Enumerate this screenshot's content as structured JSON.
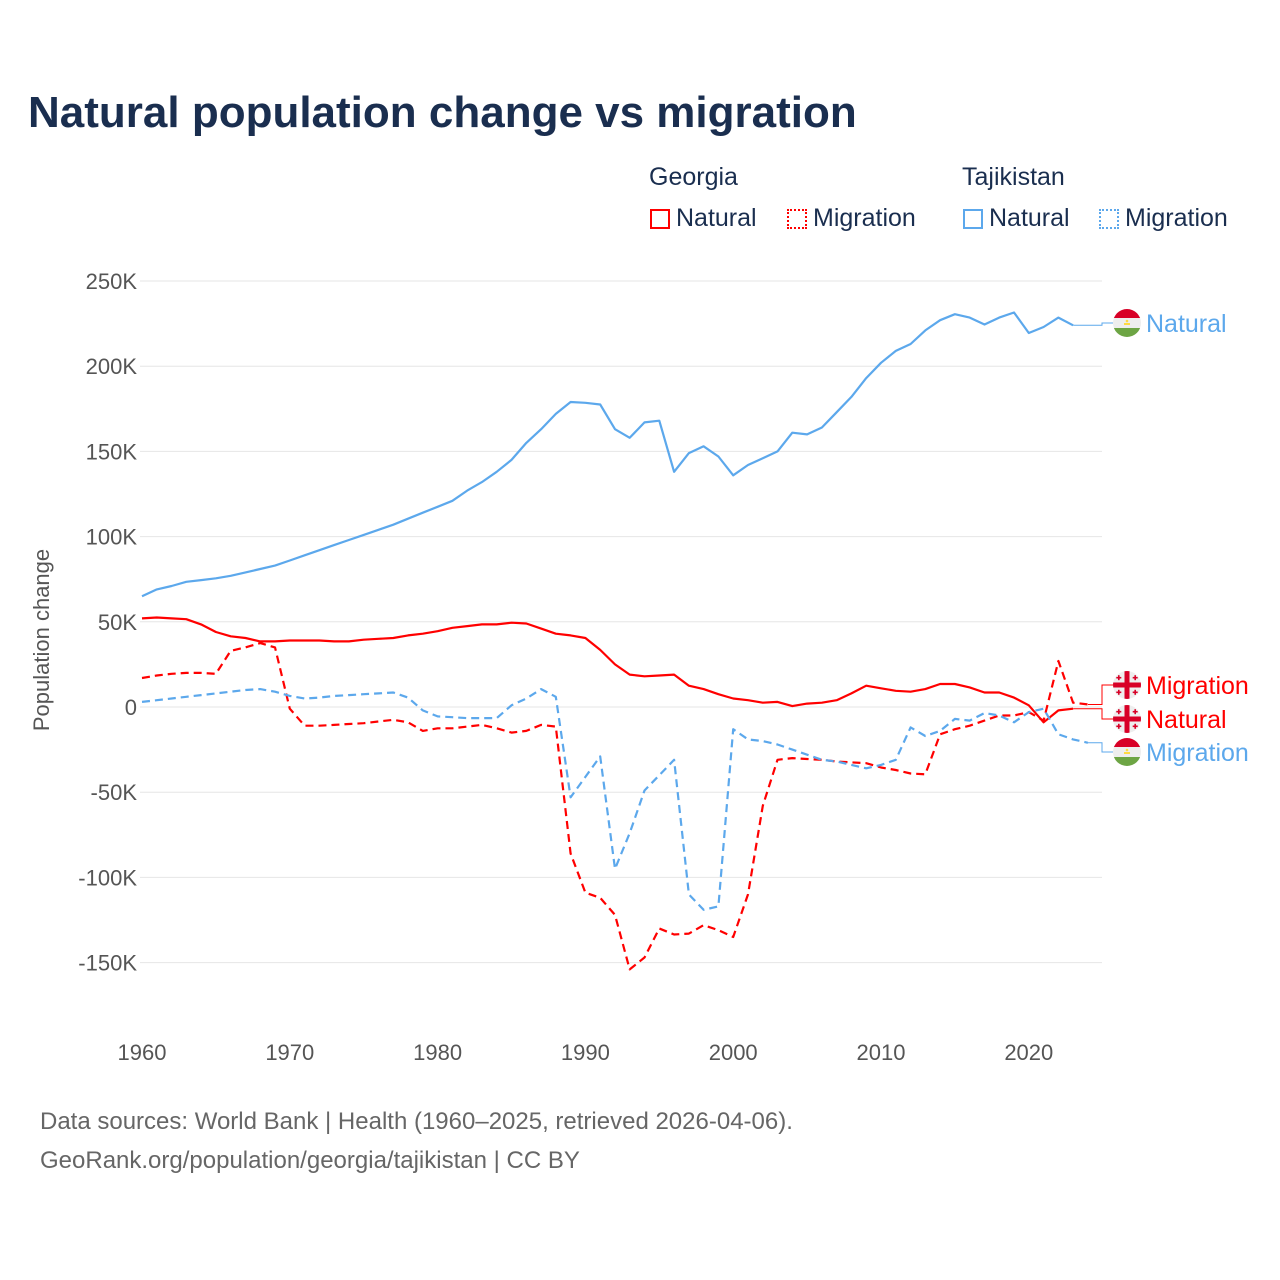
{
  "title": "Natural population change vs migration",
  "legend": {
    "groups": [
      {
        "name": "Georgia",
        "items": [
          "Natural",
          "Migration"
        ]
      },
      {
        "name": "Tajikistan",
        "items": [
          "Natural",
          "Migration"
        ]
      }
    ]
  },
  "footer": {
    "line1": "Data sources: World Bank | Health (1960–2025, retrieved 2026-04-06).",
    "line2": "GeoRank.org/population/georgia/tajikistan | CC BY"
  },
  "chart_data": {
    "type": "line",
    "title": "Natural population change vs migration",
    "xlabel": "",
    "ylabel": "Population change",
    "xlim": [
      1960,
      2025
    ],
    "ylim": [
      -150000,
      250000
    ],
    "x_ticks": [
      "1960",
      "1970",
      "1980",
      "1990",
      "2000",
      "2010",
      "2020"
    ],
    "y_ticks": [
      "250K",
      "200K",
      "150K",
      "100K",
      "50K",
      "0",
      "-50K",
      "-100K",
      "-150K"
    ],
    "grid": true,
    "legend_position": "top-right",
    "start_year": 1960,
    "series": [
      {
        "name": "Georgia Natural",
        "country": "Georgia",
        "kind": "Natural",
        "color": "#ff0000",
        "dash": "solid",
        "end_label": "Natural",
        "values": [
          52,
          52.5,
          52,
          51.5,
          48.5,
          44,
          41.5,
          40.5,
          38.5,
          38.5,
          39,
          39,
          39,
          38.5,
          38.5,
          39.5,
          40,
          40.5,
          42,
          43,
          44.5,
          46.5,
          47.5,
          48.5,
          48.5,
          49.5,
          49,
          46,
          43,
          42,
          40.5,
          33.5,
          25,
          19,
          18,
          18.5,
          19,
          12.5,
          10.5,
          7.5,
          5,
          4,
          2.5,
          3,
          0.5,
          2,
          2.5,
          4,
          8,
          12.5,
          11,
          9.5,
          9,
          10.5,
          13.5,
          13.5,
          11.5,
          8.5,
          8.5,
          5.5,
          1,
          -9,
          -2,
          -1
        ]
      },
      {
        "name": "Georgia Migration",
        "country": "Georgia",
        "kind": "Migration",
        "color": "#ff0000",
        "dash": "dashed",
        "end_label": "Migration",
        "values": [
          17,
          18.5,
          19.5,
          20,
          20,
          19.5,
          33,
          35,
          37.5,
          35,
          -1,
          -11,
          -11,
          -10.5,
          -10,
          -9.5,
          -8.5,
          -7.5,
          -9,
          -14,
          -12.5,
          -12.5,
          -11.5,
          -10.5,
          -12.5,
          -15,
          -14,
          -10.5,
          -11.5,
          -86,
          -109,
          -112,
          -122,
          -154,
          -147,
          -130,
          -133.5,
          -133,
          -128,
          -131,
          -135,
          -110,
          -58,
          -31,
          -30,
          -30.5,
          -31,
          -32,
          -32.5,
          -33,
          -35.5,
          -37,
          -39,
          -39.5,
          -16,
          -13,
          -11,
          -8,
          -5,
          -5,
          -3,
          -8,
          27,
          2.5,
          1.5
        ]
      },
      {
        "name": "Tajikistan Natural",
        "country": "Tajikistan",
        "kind": "Natural",
        "color": "#5ca8ec",
        "dash": "solid",
        "end_label": "Natural",
        "values": [
          65,
          69,
          71,
          73.5,
          74.5,
          75.5,
          77,
          79,
          81,
          83,
          86,
          89,
          92,
          95,
          98,
          101,
          104,
          107,
          110.5,
          114,
          117.5,
          121,
          127,
          132,
          138,
          145,
          155,
          163,
          172,
          179,
          178.5,
          177.5,
          163,
          158,
          167,
          168,
          138,
          149,
          153,
          147,
          136,
          142,
          146,
          150,
          161,
          160,
          164,
          173,
          182,
          193,
          202,
          209,
          213,
          221,
          227,
          230.5,
          228.5,
          224.5,
          228.5,
          231.5,
          219.5,
          223,
          228.5,
          224
        ]
      },
      {
        "name": "Tajikistan Migration",
        "country": "Tajikistan",
        "kind": "Migration",
        "color": "#5ca8ec",
        "dash": "dashed",
        "end_label": "Migration",
        "values": [
          3,
          4,
          5,
          6,
          7,
          8,
          9,
          10,
          10.5,
          9,
          6.5,
          5,
          5.5,
          6.5,
          7,
          7.5,
          8,
          8.5,
          5.5,
          -2,
          -5.5,
          -6,
          -6.5,
          -6.5,
          -6.5,
          1,
          5,
          10.5,
          6,
          -53,
          -41,
          -29,
          -95,
          -74,
          -49,
          -40,
          -31,
          -110,
          -119,
          -117,
          -13,
          -19,
          -20,
          -22,
          -25,
          -28,
          -31,
          -32,
          -34,
          -36,
          -34,
          -31,
          -12,
          -17,
          -14,
          -7,
          -8,
          -3.5,
          -5,
          -9,
          -3,
          -1,
          -16,
          -19,
          -21
        ]
      }
    ],
    "value_unit": "thousands"
  }
}
